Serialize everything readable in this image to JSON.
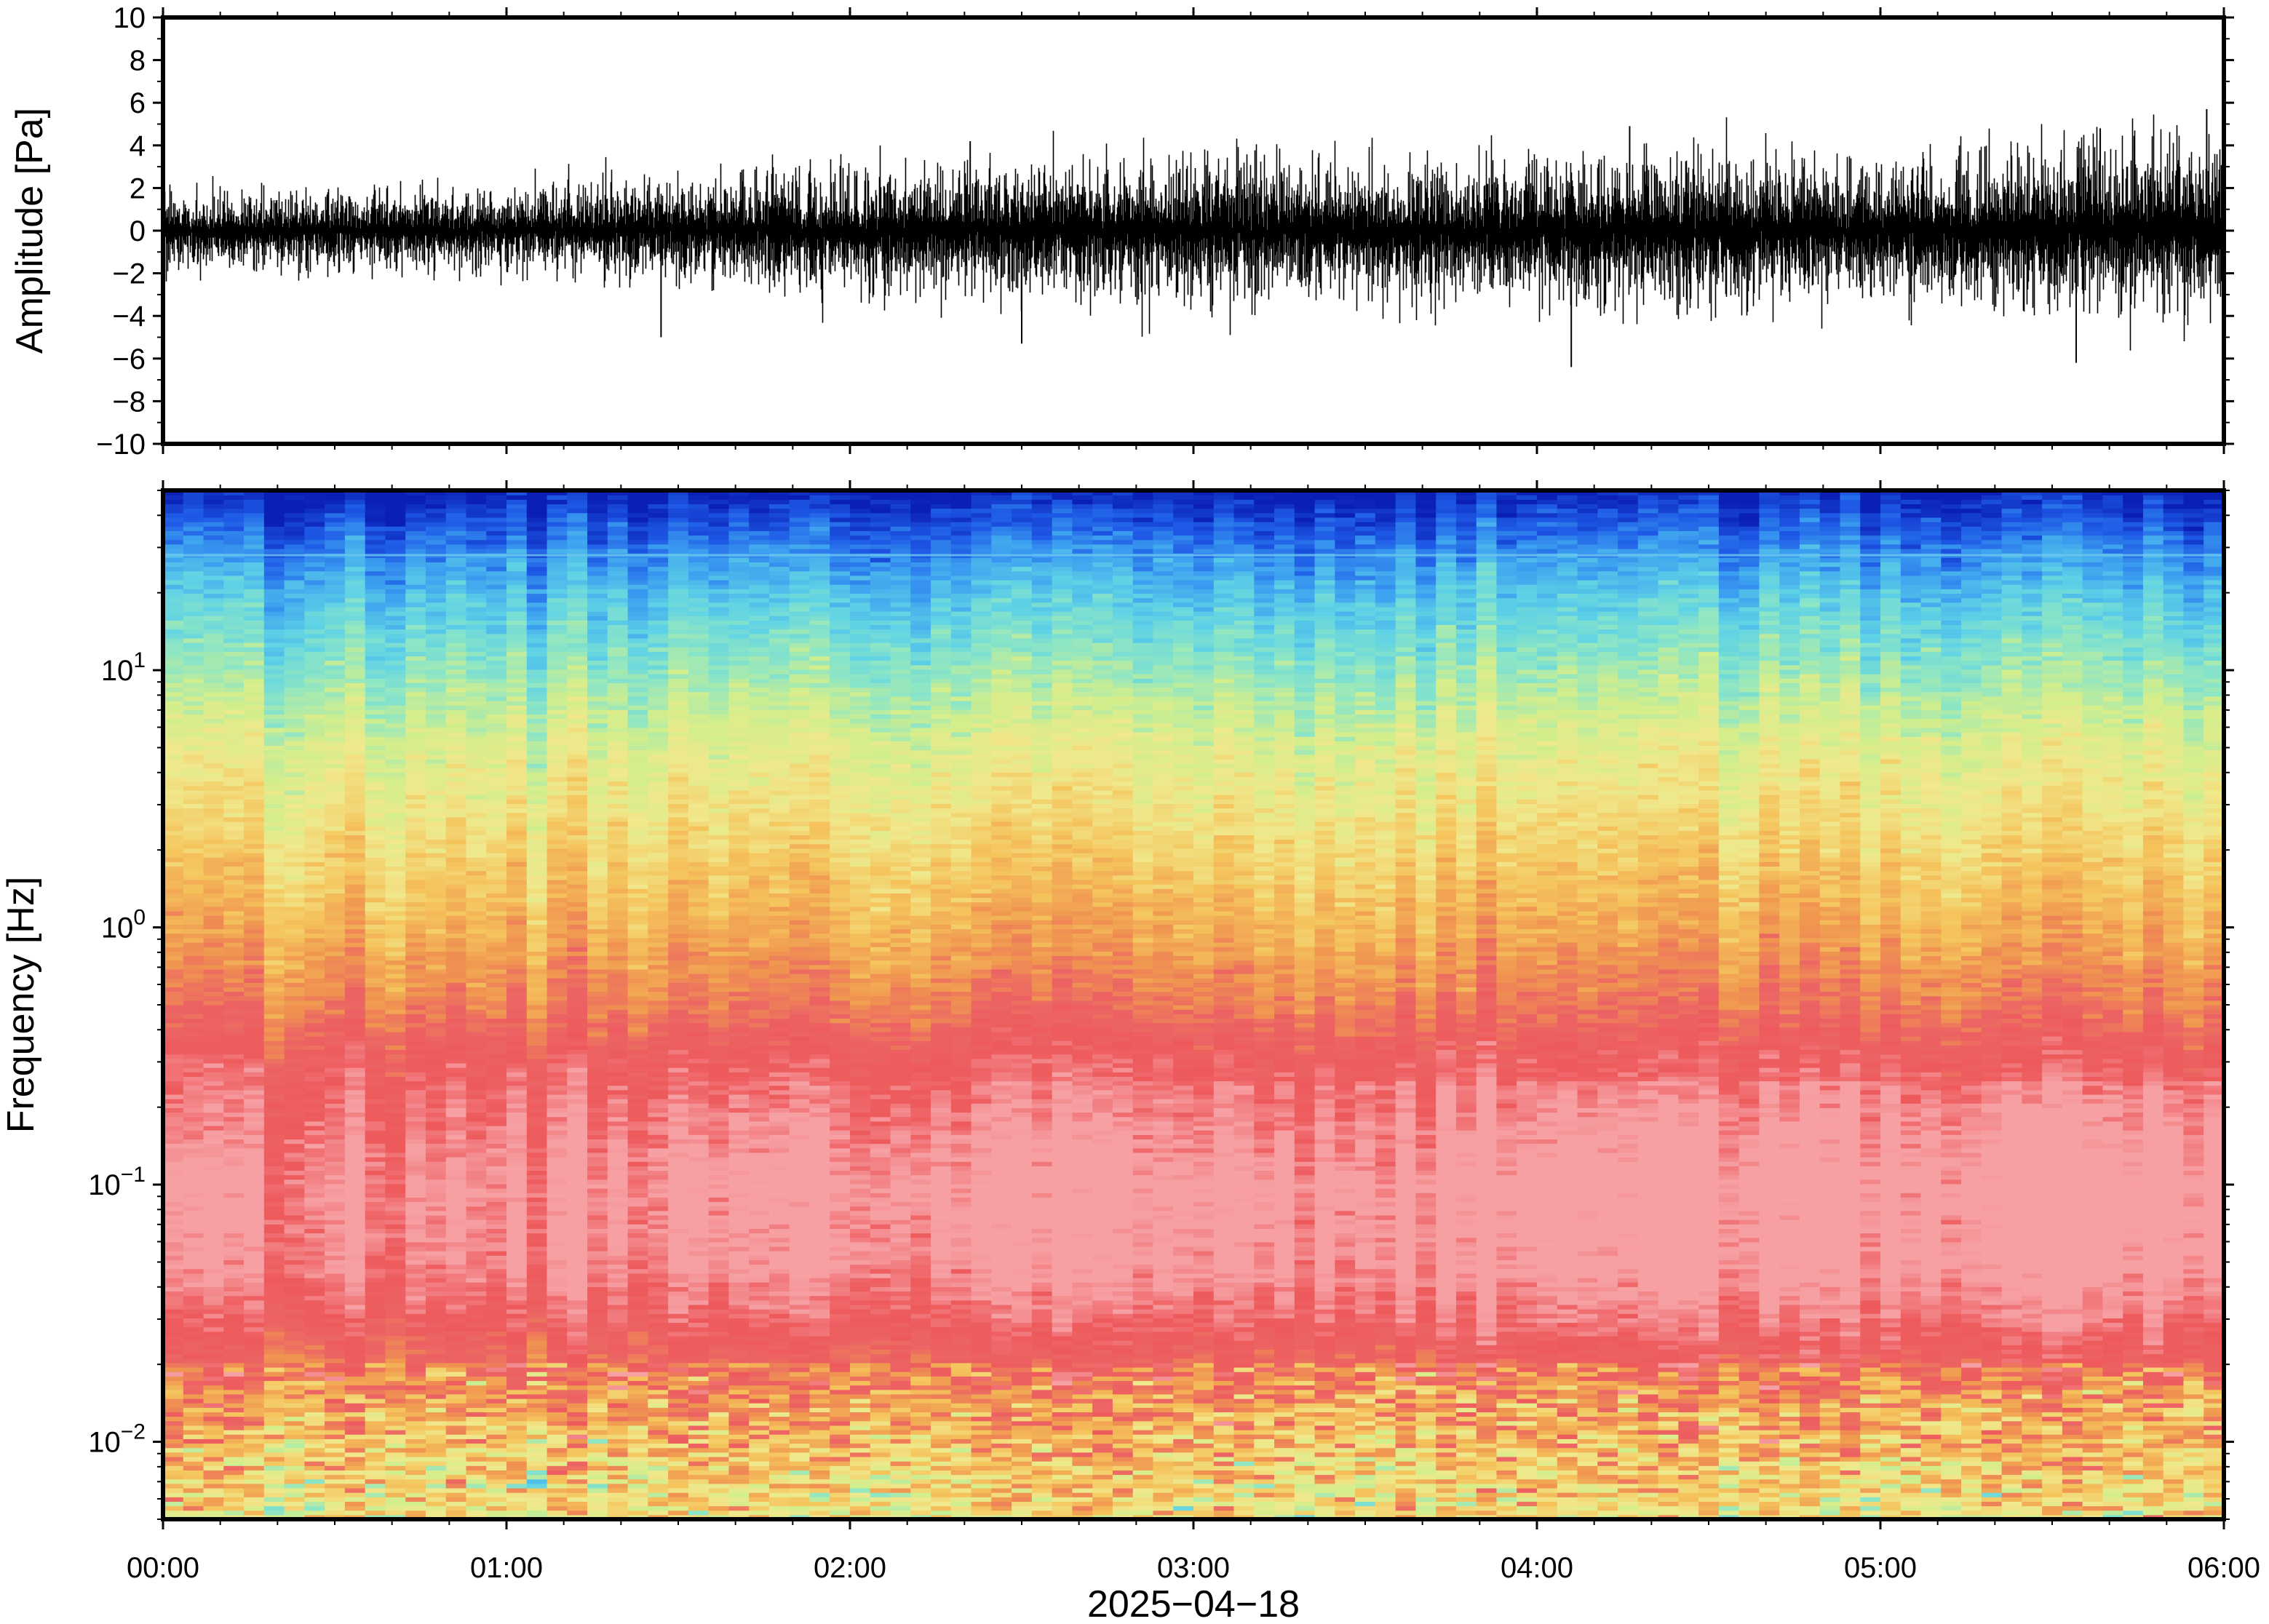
{
  "chart_data": [
    {
      "type": "line",
      "ylabel": "Amplitude [Pa]",
      "ylim": [
        -10,
        10
      ],
      "yticks": [
        {
          "value": 10,
          "label": "10"
        },
        {
          "value": 8,
          "label": "8"
        },
        {
          "value": 6,
          "label": "6"
        },
        {
          "value": 4,
          "label": "4"
        },
        {
          "value": 2,
          "label": "2"
        },
        {
          "value": 0,
          "label": "0"
        },
        {
          "value": -2,
          "label": "−2"
        },
        {
          "value": -4,
          "label": "−4"
        },
        {
          "value": -6,
          "label": "−6"
        },
        {
          "value": -8,
          "label": "−8"
        },
        {
          "value": -10,
          "label": "−10"
        }
      ],
      "xlim_hours": [
        0,
        6
      ],
      "grid": false,
      "envelope": {
        "time_hours": [
          0.0,
          0.5,
          1.0,
          1.5,
          2.0,
          2.5,
          3.0,
          3.5,
          4.0,
          4.5,
          5.0,
          5.5,
          6.0
        ],
        "typical_amplitude_pa": [
          0.9,
          1.0,
          1.0,
          1.3,
          1.5,
          1.6,
          1.7,
          1.6,
          1.7,
          1.9,
          1.6,
          2.0,
          2.2
        ]
      },
      "peaks": [
        {
          "time_hours": 1.45,
          "value_pa": -5.0
        },
        {
          "time_hours": 2.35,
          "value_pa": 4.2
        },
        {
          "time_hours": 2.5,
          "value_pa": -5.3
        },
        {
          "time_hours": 4.1,
          "value_pa": -6.4
        },
        {
          "time_hours": 4.27,
          "value_pa": 4.9
        },
        {
          "time_hours": 5.57,
          "value_pa": -6.2
        },
        {
          "time_hours": 5.64,
          "value_pa": 4.8
        },
        {
          "time_hours": 5.95,
          "value_pa": 5.7
        }
      ]
    },
    {
      "type": "heatmap",
      "ylabel": "Frequency [Hz]",
      "yscale": "log",
      "ylim": [
        0.005,
        50
      ],
      "yticks": [
        {
          "value": 10,
          "base": "10",
          "exp": "1"
        },
        {
          "value": 1,
          "base": "10",
          "exp": "0"
        },
        {
          "value": 0.1,
          "base": "10",
          "exp": "−1"
        },
        {
          "value": 0.01,
          "base": "10",
          "exp": "−2"
        }
      ],
      "xlabel": "2025−04−18",
      "xticks": [
        "00:00",
        "01:00",
        "02:00",
        "03:00",
        "04:00",
        "05:00",
        "06:00"
      ],
      "colormap": [
        "#0a1fb4",
        "#1e5ae6",
        "#3ca0f0",
        "#5ed2e6",
        "#8ee6c4",
        "#d2ee8c",
        "#f0e88c",
        "#f5c45c",
        "#f09650",
        "#ec6464",
        "#ee5a5c",
        "#f6a0a4"
      ],
      "power_profile": {
        "freq_hz": [
          50,
          30,
          20,
          10,
          5,
          2,
          1,
          0.5,
          0.3,
          0.1,
          0.05,
          0.03,
          0.02,
          0.012,
          0.005
        ],
        "level_0_to_1": [
          0.0,
          0.15,
          0.25,
          0.38,
          0.5,
          0.6,
          0.68,
          0.78,
          0.9,
          1.0,
          0.98,
          0.9,
          0.8,
          0.68,
          0.55
        ]
      }
    }
  ]
}
